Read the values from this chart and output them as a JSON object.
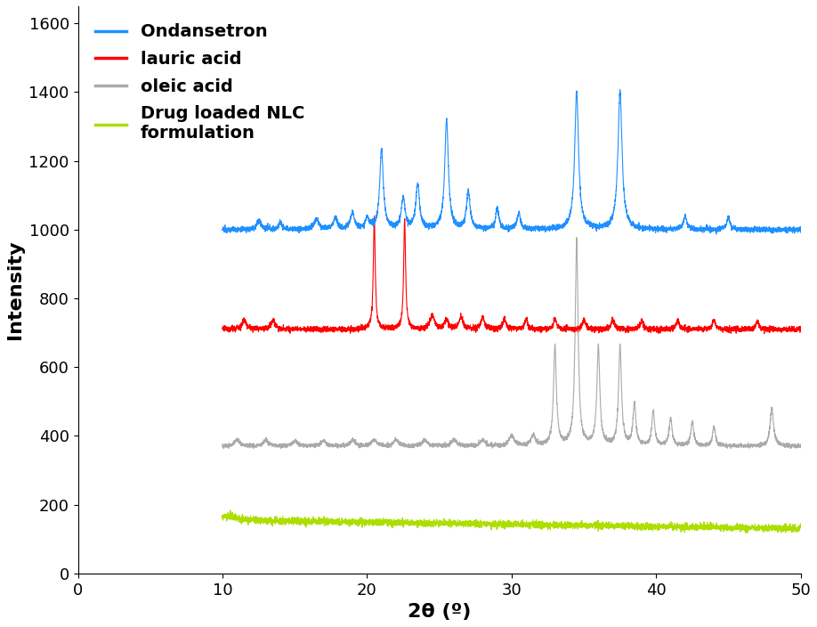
{
  "title": "",
  "xlabel": "2θ (º)",
  "ylabel": "Intensity",
  "xlim": [
    0,
    50
  ],
  "ylim": [
    0,
    1650
  ],
  "yticks": [
    0,
    200,
    400,
    600,
    800,
    1000,
    1200,
    1400,
    1600
  ],
  "xticks": [
    0,
    10,
    20,
    30,
    40,
    50
  ],
  "colors": {
    "ondansetron": "#1e90ff",
    "lauric": "#ff0000",
    "oleic": "#aaaaaa",
    "nlc": "#adde00"
  },
  "baselines": {
    "ondansetron": 1000,
    "lauric": 710,
    "oleic": 370,
    "nlc": 145
  },
  "legend": [
    {
      "label": "Ondansetron",
      "color": "#1e90ff"
    },
    {
      "label": "lauric acid",
      "color": "#ff0000"
    },
    {
      "label": "oleic acid",
      "color": "#aaaaaa"
    },
    {
      "label": "Drug loaded NLC\nformulation",
      "color": "#adde00"
    }
  ],
  "font_size_legend": 14,
  "font_size_axis_label": 16,
  "font_size_ticks": 13
}
